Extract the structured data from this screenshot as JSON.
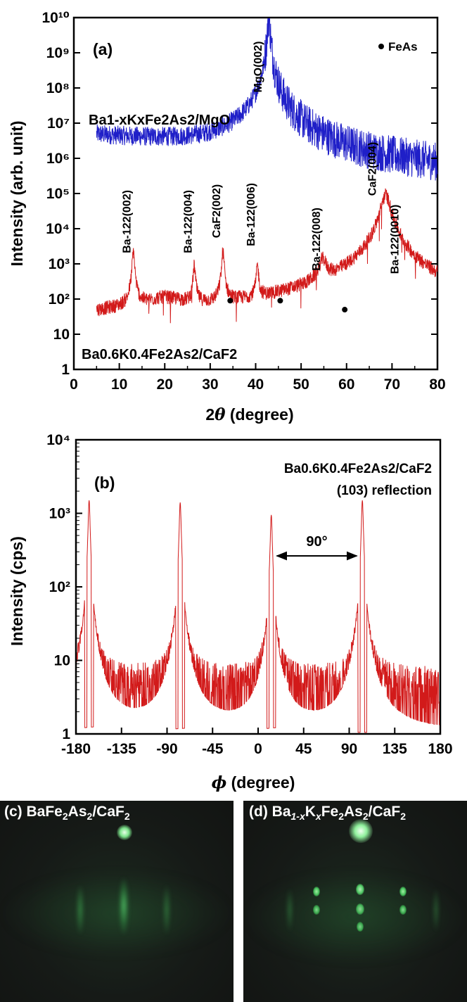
{
  "chart_data": [
    {
      "type": "line",
      "panel_label": "(a)",
      "xlabel": "2θ (degree)",
      "ylabel": "Intensity (arb. unit)",
      "xlim": [
        0,
        80
      ],
      "ylim": [
        1,
        10000000000
      ],
      "yscale": "log",
      "x_ticks": [
        0,
        10,
        20,
        30,
        40,
        50,
        60,
        70,
        80
      ],
      "y_ticks": [
        "1",
        "10",
        "10²",
        "10³",
        "10⁴",
        "10⁵",
        "10⁶",
        "10⁷",
        "10⁸",
        "10⁹",
        "10¹⁰"
      ],
      "series": [
        {
          "name": "Ba1-xKxFe2As2/MgO",
          "color": "#1f1fc8",
          "peaks": [
            {
              "label": "MgO(002)",
              "x": 42.9,
              "y": 10000000000
            }
          ],
          "background": [
            {
              "x": 5,
              "y": 4500000
            },
            {
              "x": 20,
              "y": 3000000
            },
            {
              "x": 35,
              "y": 1800000
            },
            {
              "x": 42,
              "y": 1500000
            },
            {
              "x": 60,
              "y": 500000
            },
            {
              "x": 80,
              "y": 350000
            }
          ]
        },
        {
          "name": "Ba0.6K0.4Fe2As2/CaF2",
          "color": "#d21a1a",
          "peaks": [
            {
              "label": "Ba-122(002)",
              "x": 13.1,
              "y": 2200
            },
            {
              "label": "Ba-122(004)",
              "x": 26.5,
              "y": 800
            },
            {
              "label": "CaF2(002)",
              "x": 32.8,
              "y": 2200
            },
            {
              "label": "Ba-122(006)",
              "x": 40.4,
              "y": 800
            },
            {
              "label": "Ba-122(008)",
              "x": 54.8,
              "y": 1000
            },
            {
              "label": "CaF2(004)",
              "x": 68.6,
              "y": 90000
            },
            {
              "label": "Ba-122(0010)",
              "x": 70.2,
              "y": 2000
            }
          ],
          "background": [
            {
              "x": 5,
              "y": 30
            },
            {
              "x": 20,
              "y": 60
            },
            {
              "x": 30,
              "y": 30
            },
            {
              "x": 60,
              "y": 20
            },
            {
              "x": 80,
              "y": 15
            }
          ]
        }
      ],
      "markers": {
        "name": "FeAs",
        "points": [
          {
            "x": 34.4,
            "y": 90
          },
          {
            "x": 45.4,
            "y": 90
          },
          {
            "x": 59.6,
            "y": 50
          }
        ]
      },
      "annotations": {
        "mgo_label": "Ba1-xKxFe2As2/MgO",
        "caf2_label": "Ba0.6K0.4Fe2As2/CaF2",
        "legend_label": "FeAs"
      }
    },
    {
      "type": "line",
      "panel_label": "(b)",
      "xlabel": "ϕ (degree)",
      "ylabel": "Intensity (cps)",
      "xlim": [
        -180,
        180
      ],
      "ylim": [
        1,
        10000
      ],
      "yscale": "log",
      "x_ticks": [
        -180,
        -135,
        -90,
        -45,
        0,
        45,
        90,
        135,
        180
      ],
      "y_ticks": [
        "1",
        "10",
        "10²",
        "10³",
        "10⁴"
      ],
      "series": [
        {
          "name": "Ba0.6K0.4Fe2As2/CaF2",
          "color": "#d21a1a",
          "peaks": [
            {
              "x": -167,
              "y": 1500
            },
            {
              "x": -77,
              "y": 1400
            },
            {
              "x": 13,
              "y": 950
            },
            {
              "x": 103,
              "y": 1500
            }
          ],
          "background_range": [
            1.5,
            8
          ]
        }
      ],
      "annotations": {
        "sample": "Ba0.6K0.4Fe2As2/CaF2",
        "reflection": "(103) reflection",
        "spacing": "90°"
      }
    }
  ],
  "photos": [
    {
      "label_prefix": "(c) BaFe",
      "label_mid": "As",
      "label_suffix": "/CaF",
      "sub2": "2"
    },
    {
      "label_prefix": "(d) Ba",
      "sub_a": "1-x",
      "label_k": "K",
      "sub_x": "x",
      "label_fe": "Fe",
      "label_as": "As",
      "label_suffix": "/CaF",
      "sub2": "2"
    }
  ]
}
